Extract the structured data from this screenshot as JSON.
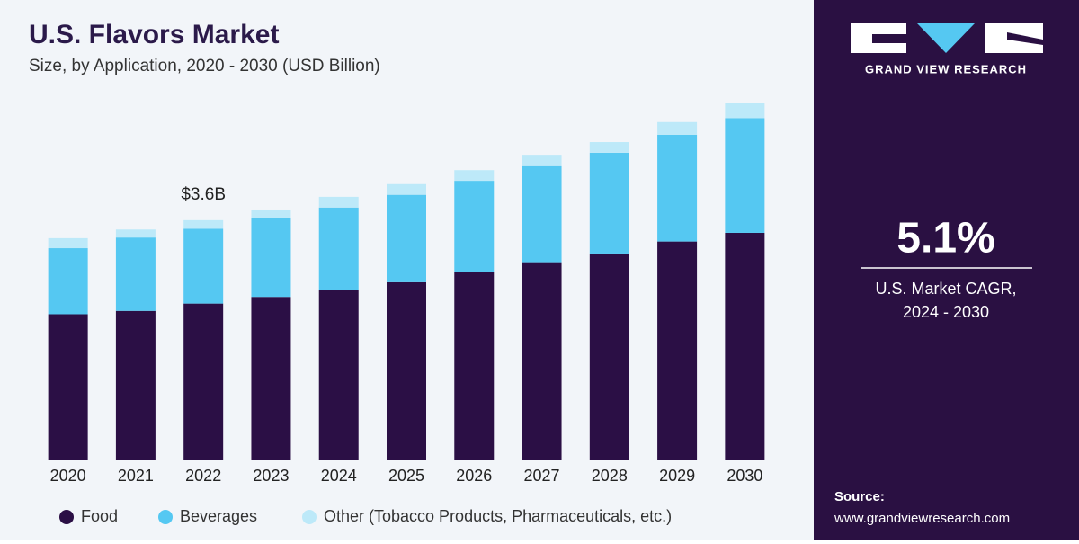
{
  "chart_data": {
    "type": "stacked_bar",
    "title": "U.S. Flavors Market",
    "subtitle": "Size, by Application, 2020 - 2030 (USD Billion)",
    "categories": [
      "2020",
      "2021",
      "2022",
      "2023",
      "2024",
      "2025",
      "2026",
      "2027",
      "2028",
      "2029",
      "2030"
    ],
    "series": [
      {
        "name": "Food",
        "color": "#2b0f45",
        "values": [
          2.19,
          2.24,
          2.35,
          2.45,
          2.55,
          2.67,
          2.82,
          2.97,
          3.1,
          3.28,
          3.41
        ]
      },
      {
        "name": "Beverages",
        "color": "#55c8f2",
        "values": [
          0.99,
          1.1,
          1.12,
          1.18,
          1.24,
          1.31,
          1.37,
          1.44,
          1.51,
          1.6,
          1.72
        ]
      },
      {
        "name": "Other (Tobacco Products, Pharmaceuticals, etc.)",
        "color": "#bde9f9",
        "values": [
          0.15,
          0.12,
          0.13,
          0.13,
          0.16,
          0.16,
          0.16,
          0.17,
          0.16,
          0.19,
          0.22
        ]
      }
    ],
    "annotations": [
      {
        "x": "2022",
        "text": "$3.6B",
        "value": 3.6
      }
    ]
  },
  "sidebar": {
    "brand": "GRAND VIEW RESEARCH",
    "cagr": "5.1%",
    "cagr_label": "U.S. Market CAGR,",
    "cagr_period": "2024 - 2030",
    "source_label": "Source:",
    "source_url": "www.grandviewresearch.com"
  }
}
